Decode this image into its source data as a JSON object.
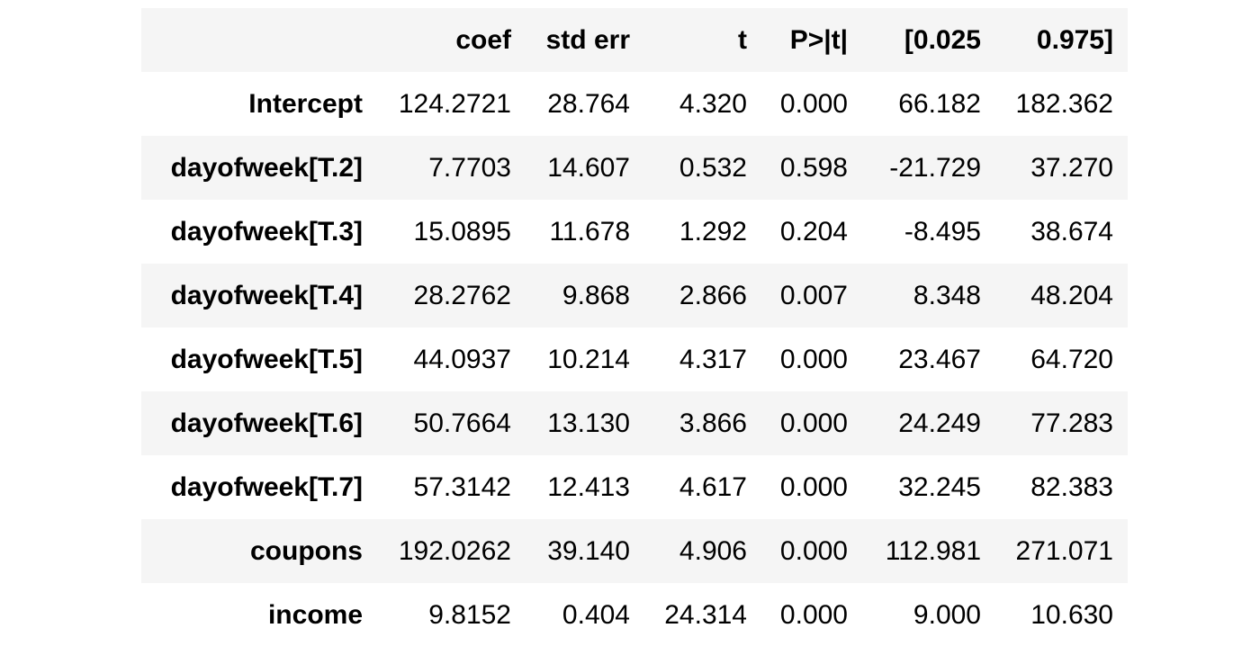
{
  "table": {
    "header": [
      "",
      "coef",
      "std err",
      "t",
      "P>|t|",
      "[0.025",
      "0.975]"
    ],
    "rows": [
      {
        "label": "Intercept",
        "coef": "124.2721",
        "std_err": "28.764",
        "t": "4.320",
        "p": "0.000",
        "ci_low": "66.182",
        "ci_high": "182.362"
      },
      {
        "label": "dayofweek[T.2]",
        "coef": "7.7703",
        "std_err": "14.607",
        "t": "0.532",
        "p": "0.598",
        "ci_low": "-21.729",
        "ci_high": "37.270"
      },
      {
        "label": "dayofweek[T.3]",
        "coef": "15.0895",
        "std_err": "11.678",
        "t": "1.292",
        "p": "0.204",
        "ci_low": "-8.495",
        "ci_high": "38.674"
      },
      {
        "label": "dayofweek[T.4]",
        "coef": "28.2762",
        "std_err": "9.868",
        "t": "2.866",
        "p": "0.007",
        "ci_low": "8.348",
        "ci_high": "48.204"
      },
      {
        "label": "dayofweek[T.5]",
        "coef": "44.0937",
        "std_err": "10.214",
        "t": "4.317",
        "p": "0.000",
        "ci_low": "23.467",
        "ci_high": "64.720"
      },
      {
        "label": "dayofweek[T.6]",
        "coef": "50.7664",
        "std_err": "13.130",
        "t": "3.866",
        "p": "0.000",
        "ci_low": "24.249",
        "ci_high": "77.283"
      },
      {
        "label": "dayofweek[T.7]",
        "coef": "57.3142",
        "std_err": "12.413",
        "t": "4.617",
        "p": "0.000",
        "ci_low": "32.245",
        "ci_high": "82.383"
      },
      {
        "label": "coupons",
        "coef": "192.0262",
        "std_err": "39.140",
        "t": "4.906",
        "p": "0.000",
        "ci_low": "112.981",
        "ci_high": "271.071"
      },
      {
        "label": "income",
        "coef": "9.8152",
        "std_err": "0.404",
        "t": "24.314",
        "p": "0.000",
        "ci_low": "9.000",
        "ci_high": "10.630"
      }
    ]
  },
  "colors": {
    "stripe": "#f5f5f5",
    "background": "#ffffff",
    "text": "#000000"
  }
}
